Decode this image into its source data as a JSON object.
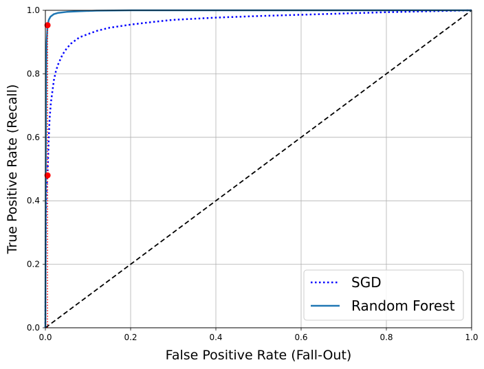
{
  "chart_data": {
    "type": "line",
    "title": "",
    "xlabel": "False Positive Rate (Fall-Out)",
    "ylabel": "True Positive Rate (Recall)",
    "xlim": [
      0,
      1
    ],
    "ylim": [
      0,
      1
    ],
    "xticks": [
      "0.0",
      "0.2",
      "0.4",
      "0.6",
      "0.8",
      "1.0"
    ],
    "yticks": [
      "0.0",
      "0.2",
      "0.4",
      "0.6",
      "0.8",
      "1.0"
    ],
    "grid": true,
    "legend_position": "lower-right",
    "series": [
      {
        "name": "SGD",
        "style": "dotted",
        "color": "#0000ff",
        "x": [
          0,
          0.001,
          0.002,
          0.003,
          0.004,
          0.005,
          0.006,
          0.008,
          0.01,
          0.013,
          0.016,
          0.02,
          0.025,
          0.03,
          0.04,
          0.05,
          0.06,
          0.08,
          0.1,
          0.12,
          0.15,
          0.2,
          0.25,
          0.3,
          0.4,
          0.5,
          0.6,
          0.7,
          0.8,
          0.9,
          1.0
        ],
        "y": [
          0,
          0.3,
          0.4,
          0.44,
          0.47,
          0.48,
          0.52,
          0.6,
          0.66,
          0.71,
          0.74,
          0.78,
          0.81,
          0.83,
          0.86,
          0.88,
          0.895,
          0.915,
          0.925,
          0.935,
          0.945,
          0.955,
          0.963,
          0.97,
          0.977,
          0.982,
          0.986,
          0.99,
          0.994,
          0.997,
          1.0
        ]
      },
      {
        "name": "Random Forest",
        "style": "solid",
        "color": "#1f77b4",
        "x": [
          0,
          0.001,
          0.002,
          0.003,
          0.005,
          0.008,
          0.012,
          0.02,
          0.03,
          0.05,
          0.08,
          0.12,
          0.2,
          0.3,
          1.0
        ],
        "y": [
          0,
          0.5,
          0.8,
          0.9,
          0.95,
          0.97,
          0.98,
          0.988,
          0.992,
          0.995,
          0.997,
          0.999,
          1.0,
          1.0,
          1.0
        ]
      },
      {
        "name": "",
        "style": "dashed",
        "color": "#000000",
        "x": [
          0,
          1
        ],
        "y": [
          0,
          1
        ]
      }
    ],
    "markers": [
      {
        "x": 0.005,
        "y": 0.48,
        "color": "#ff0000"
      },
      {
        "x": 0.005,
        "y": 0.953,
        "color": "#ff0000"
      }
    ],
    "threshold_line": {
      "x": 0.005,
      "y_range": [
        0,
        0.953
      ],
      "style": "dotted",
      "color": "#ff0000"
    }
  }
}
